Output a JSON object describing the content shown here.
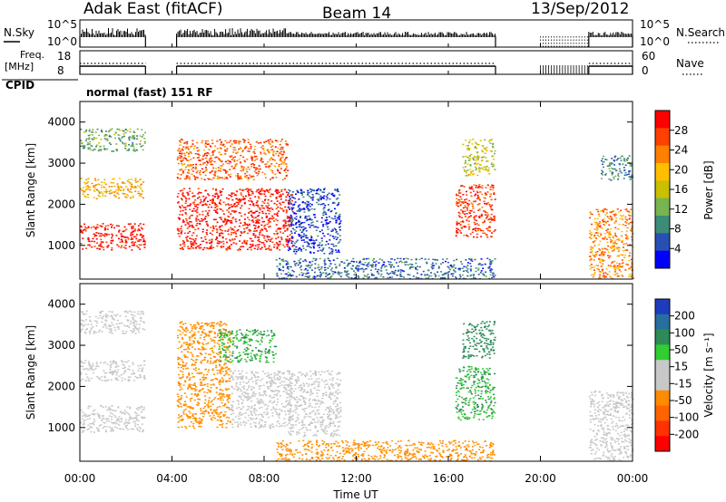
{
  "header": {
    "station": "Adak East (fitACF)",
    "beam": "Beam 14",
    "date": "13/Sep/2012"
  },
  "top_panels": {
    "nsky_label": "N.Sky",
    "nsky_ticks": [
      "10^5",
      "10^0"
    ],
    "nsearch_label": "N.Search",
    "nsearch_ticks": [
      "10^5",
      "10^0"
    ],
    "freq_label_line1": "Freq.",
    "freq_label_line2": "[MHz]",
    "freq_ticks": [
      "18",
      "8"
    ],
    "nave_label": "Nave",
    "nave_ticks": [
      "60",
      "0"
    ],
    "cpid_label": "CPID",
    "cpid_text": "normal (fast) 151 RF"
  },
  "x_axis": {
    "label": "Time UT",
    "ticks": [
      "00:00",
      "04:00",
      "08:00",
      "12:00",
      "16:00",
      "20:00",
      "00:00"
    ],
    "range_hours": [
      0,
      24
    ]
  },
  "power_panel": {
    "ylabel": "Slant Range [km]",
    "yticks": [
      "4000",
      "3000",
      "2000",
      "1000"
    ],
    "cbar_label": "Power [dB]",
    "cbar_ticks": [
      "28",
      "24",
      "20",
      "16",
      "12",
      "8",
      "4"
    ],
    "cbar_colors": [
      "#ff0000",
      "#ff4000",
      "#ff8000",
      "#ffbf00",
      "#c8c000",
      "#78b450",
      "#3c8c78",
      "#2850b4",
      "#0000ff"
    ]
  },
  "velocity_panel": {
    "ylabel": "Slant Range [km]",
    "yticks": [
      "4000",
      "3000",
      "2000",
      "1000"
    ],
    "cbar_label": "Velocity [m s⁻¹]",
    "cbar_ticks": [
      "200",
      "100",
      "50",
      "15",
      "-15",
      "-50",
      "-100",
      "-200"
    ],
    "cbar_colors": [
      "#1e3cbe",
      "#286ea0",
      "#2e8b57",
      "#32cd32",
      "#c8c8c8",
      "#c8c8c8",
      "#ff8c00",
      "#ff6400",
      "#ff3200",
      "#ff0000"
    ]
  },
  "chart_data": {
    "type": "heatmap",
    "x_unit": "hours UT",
    "y_unit": "km",
    "xlim": [
      0,
      24
    ],
    "ylim": [
      180,
      4500
    ],
    "gaps_hours": [
      [
        2.85,
        4.2
      ],
      [
        18.05,
        22.1
      ]
    ],
    "power_regions": [
      {
        "x": [
          0,
          2.8
        ],
        "y": [
          900,
          1550
        ],
        "value": 28
      },
      {
        "x": [
          0,
          2.8
        ],
        "y": [
          2150,
          2650
        ],
        "value": 20
      },
      {
        "x": [
          0,
          2.8
        ],
        "y": [
          3300,
          3850
        ],
        "value": 12
      },
      {
        "x": [
          4.2,
          9.2
        ],
        "y": [
          900,
          2400
        ],
        "value": 28
      },
      {
        "x": [
          4.2,
          9.0
        ],
        "y": [
          2600,
          3600
        ],
        "value": 24
      },
      {
        "x": [
          9.0,
          11.3
        ],
        "y": [
          800,
          2400
        ],
        "value": 6
      },
      {
        "x": [
          8.5,
          18.0
        ],
        "y": [
          200,
          700
        ],
        "value": 8
      },
      {
        "x": [
          16.3,
          18.0
        ],
        "y": [
          1200,
          2500
        ],
        "value": 26
      },
      {
        "x": [
          16.6,
          18.0
        ],
        "y": [
          2700,
          3600
        ],
        "value": 16
      },
      {
        "x": [
          22.1,
          24.0
        ],
        "y": [
          200,
          1900
        ],
        "value": 22
      },
      {
        "x": [
          22.6,
          24.0
        ],
        "y": [
          2600,
          3200
        ],
        "value": 10
      }
    ],
    "velocity_regions": [
      {
        "x": [
          0,
          2.8
        ],
        "y": [
          900,
          1550
        ],
        "value": 0
      },
      {
        "x": [
          0,
          2.8
        ],
        "y": [
          2150,
          2650
        ],
        "value": 0
      },
      {
        "x": [
          0,
          2.8
        ],
        "y": [
          3300,
          3850
        ],
        "value": 0
      },
      {
        "x": [
          4.2,
          6.5
        ],
        "y": [
          1000,
          3600
        ],
        "value": -60
      },
      {
        "x": [
          6.5,
          9.2
        ],
        "y": [
          1000,
          2400
        ],
        "value": 0
      },
      {
        "x": [
          6.0,
          8.5
        ],
        "y": [
          2600,
          3400
        ],
        "value": 30
      },
      {
        "x": [
          9.0,
          11.3
        ],
        "y": [
          800,
          2400
        ],
        "value": 0
      },
      {
        "x": [
          8.5,
          18.0
        ],
        "y": [
          200,
          700
        ],
        "value": -60
      },
      {
        "x": [
          16.3,
          18.0
        ],
        "y": [
          1200,
          2500
        ],
        "value": 30
      },
      {
        "x": [
          16.6,
          18.0
        ],
        "y": [
          2700,
          3600
        ],
        "value": 60
      },
      {
        "x": [
          22.1,
          24.0
        ],
        "y": [
          200,
          1900
        ],
        "value": 0
      }
    ]
  }
}
